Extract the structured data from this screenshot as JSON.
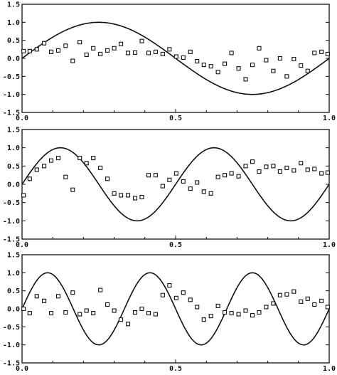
{
  "chart_data": [
    {
      "type": "scatter",
      "title": "",
      "xlabel": "",
      "ylabel": "",
      "xlim": [
        0.0,
        1.0
      ],
      "ylim": [
        -1.5,
        1.5
      ],
      "x_ticks": [
        "0.0",
        "0.5",
        "1.0"
      ],
      "y_ticks": [
        "1.5",
        "1.0",
        "0.5",
        "0.0",
        "-0.5",
        "-1.0",
        "-1.5"
      ],
      "grid": false,
      "curve": {
        "type": "line",
        "function": "sin(2*pi*1*x)",
        "frequency": 1
      },
      "points": {
        "x": [
          0.005,
          0.025,
          0.048,
          0.072,
          0.095,
          0.118,
          0.142,
          0.165,
          0.188,
          0.21,
          0.232,
          0.255,
          0.278,
          0.3,
          0.322,
          0.345,
          0.368,
          0.39,
          0.412,
          0.435,
          0.458,
          0.48,
          0.502,
          0.525,
          0.548,
          0.57,
          0.592,
          0.615,
          0.638,
          0.66,
          0.682,
          0.705,
          0.728,
          0.75,
          0.772,
          0.795,
          0.818,
          0.84,
          0.862,
          0.885,
          0.908,
          0.93,
          0.952,
          0.975,
          0.995
        ],
        "y": [
          0.2,
          0.2,
          0.25,
          0.42,
          0.18,
          0.22,
          0.35,
          -0.07,
          0.45,
          0.1,
          0.28,
          0.12,
          0.22,
          0.28,
          0.4,
          0.15,
          0.16,
          0.48,
          0.15,
          0.18,
          0.12,
          0.25,
          0.05,
          0.02,
          0.18,
          -0.08,
          -0.18,
          -0.22,
          -0.38,
          -0.15,
          0.15,
          -0.28,
          -0.58,
          -0.18,
          0.28,
          -0.05,
          -0.35,
          0.0,
          -0.5,
          -0.02,
          -0.2,
          -0.35,
          0.15,
          0.18,
          0.12
        ]
      }
    },
    {
      "type": "scatter",
      "title": "",
      "xlabel": "",
      "ylabel": "",
      "xlim": [
        0.0,
        1.0
      ],
      "ylim": [
        -1.5,
        1.5
      ],
      "x_ticks": [
        "0.0",
        "0.5",
        "1.0"
      ],
      "y_ticks": [
        "1.5",
        "1.0",
        "0.5",
        "0.0",
        "-0.5",
        "-1.0",
        "-1.5"
      ],
      "grid": false,
      "curve": {
        "type": "line",
        "function": "sin(2*pi*2*x)",
        "frequency": 2
      },
      "points": {
        "x": [
          0.005,
          0.025,
          0.048,
          0.072,
          0.095,
          0.118,
          0.142,
          0.165,
          0.188,
          0.21,
          0.232,
          0.255,
          0.278,
          0.3,
          0.322,
          0.345,
          0.368,
          0.39,
          0.412,
          0.435,
          0.458,
          0.48,
          0.502,
          0.525,
          0.548,
          0.57,
          0.592,
          0.615,
          0.638,
          0.66,
          0.682,
          0.705,
          0.728,
          0.75,
          0.772,
          0.795,
          0.818,
          0.84,
          0.862,
          0.885,
          0.908,
          0.93,
          0.952,
          0.975,
          0.995
        ],
        "y": [
          -0.3,
          0.15,
          0.4,
          0.5,
          0.65,
          0.72,
          0.2,
          -0.15,
          0.72,
          0.58,
          0.72,
          0.45,
          0.15,
          -0.25,
          -0.3,
          -0.3,
          -0.38,
          -0.35,
          0.25,
          0.25,
          -0.05,
          0.12,
          0.3,
          0.08,
          -0.12,
          0.05,
          -0.2,
          -0.25,
          0.2,
          0.25,
          0.3,
          0.22,
          0.5,
          0.62,
          0.35,
          0.48,
          0.5,
          0.35,
          0.45,
          0.38,
          0.58,
          0.4,
          0.42,
          0.3,
          0.32
        ]
      }
    },
    {
      "type": "scatter",
      "title": "",
      "xlabel": "",
      "ylabel": "",
      "xlim": [
        0.0,
        1.0
      ],
      "ylim": [
        -1.5,
        1.5
      ],
      "x_ticks": [
        "0.0",
        "0.5",
        "1.0"
      ],
      "y_ticks": [
        "1.5",
        "1.0",
        "0.5",
        "0.0",
        "-0.5",
        "-1.0",
        "-1.5"
      ],
      "grid": false,
      "curve": {
        "type": "line",
        "function": "sin(2*pi*3*x)",
        "frequency": 3
      },
      "points": {
        "x": [
          0.005,
          0.025,
          0.048,
          0.072,
          0.095,
          0.118,
          0.142,
          0.165,
          0.188,
          0.21,
          0.232,
          0.255,
          0.278,
          0.3,
          0.322,
          0.345,
          0.368,
          0.39,
          0.412,
          0.435,
          0.458,
          0.48,
          0.502,
          0.525,
          0.548,
          0.57,
          0.592,
          0.615,
          0.638,
          0.66,
          0.682,
          0.705,
          0.728,
          0.75,
          0.772,
          0.795,
          0.818,
          0.84,
          0.862,
          0.885,
          0.908,
          0.93,
          0.952,
          0.975,
          0.995
        ],
        "y": [
          0.0,
          -0.12,
          0.35,
          0.22,
          -0.12,
          0.35,
          -0.1,
          0.45,
          -0.15,
          -0.05,
          -0.12,
          0.52,
          0.12,
          -0.05,
          -0.3,
          -0.42,
          -0.1,
          0.0,
          -0.12,
          -0.15,
          0.38,
          0.65,
          0.3,
          0.45,
          0.25,
          0.05,
          -0.3,
          -0.2,
          0.08,
          -0.1,
          -0.12,
          -0.15,
          -0.05,
          -0.18,
          -0.1,
          0.05,
          0.15,
          0.38,
          0.4,
          0.48,
          0.2,
          0.28,
          0.12,
          0.22,
          0.05
        ]
      }
    }
  ]
}
